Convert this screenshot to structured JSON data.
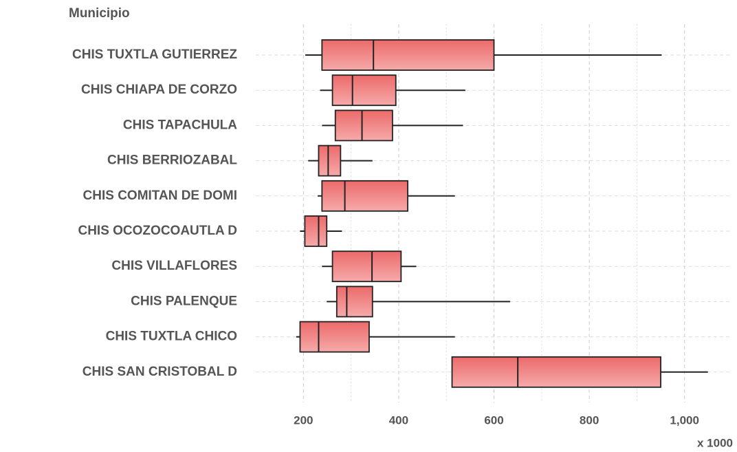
{
  "chart_data": {
    "type": "boxplot",
    "y_axis_title": "Municipio",
    "x_axis_title": "x 1000",
    "categories": [
      "CHIS TUXTLA GUTIERREZ",
      "CHIS CHIAPA DE CORZO",
      "CHIS TAPACHULA",
      "CHIS BERRIOZABAL",
      "CHIS COMITAN DE DOMI",
      "CHIS OCOZOCOAUTLA D",
      "CHIS VILLAFLORES",
      "CHIS PALENQUE",
      "CHIS TUXTLA CHICO",
      "CHIS SAN CRISTOBAL D"
    ],
    "boxes": [
      {
        "min": 204,
        "q1": 239,
        "median": 347,
        "q3": 600,
        "max": 952
      },
      {
        "min": 235,
        "q1": 261,
        "median": 303,
        "q3": 394,
        "max": 540
      },
      {
        "min": 239,
        "q1": 267,
        "median": 323,
        "q3": 387,
        "max": 535
      },
      {
        "min": 210,
        "q1": 232,
        "median": 252,
        "q3": 278,
        "max": 345
      },
      {
        "min": 230,
        "q1": 239,
        "median": 287,
        "q3": 419,
        "max": 518
      },
      {
        "min": 193,
        "q1": 203,
        "median": 232,
        "q3": 249,
        "max": 281
      },
      {
        "min": 239,
        "q1": 261,
        "median": 344,
        "q3": 405,
        "max": 437
      },
      {
        "min": 249,
        "q1": 270,
        "median": 291,
        "q3": 345,
        "max": 634
      },
      {
        "min": 185,
        "q1": 193,
        "median": 232,
        "q3": 338,
        "max": 518
      },
      {
        "min": 512,
        "q1": 512,
        "median": 650,
        "q3": 950,
        "max": 1049
      }
    ],
    "color": "#ec6a6a",
    "xlim": [
      100,
      1100
    ],
    "xticks": [
      200,
      400,
      600,
      800,
      {
        "value": 1000,
        "label": "1,000"
      }
    ],
    "minor_xticks": [
      300,
      500,
      700,
      900
    ],
    "grid": true
  }
}
